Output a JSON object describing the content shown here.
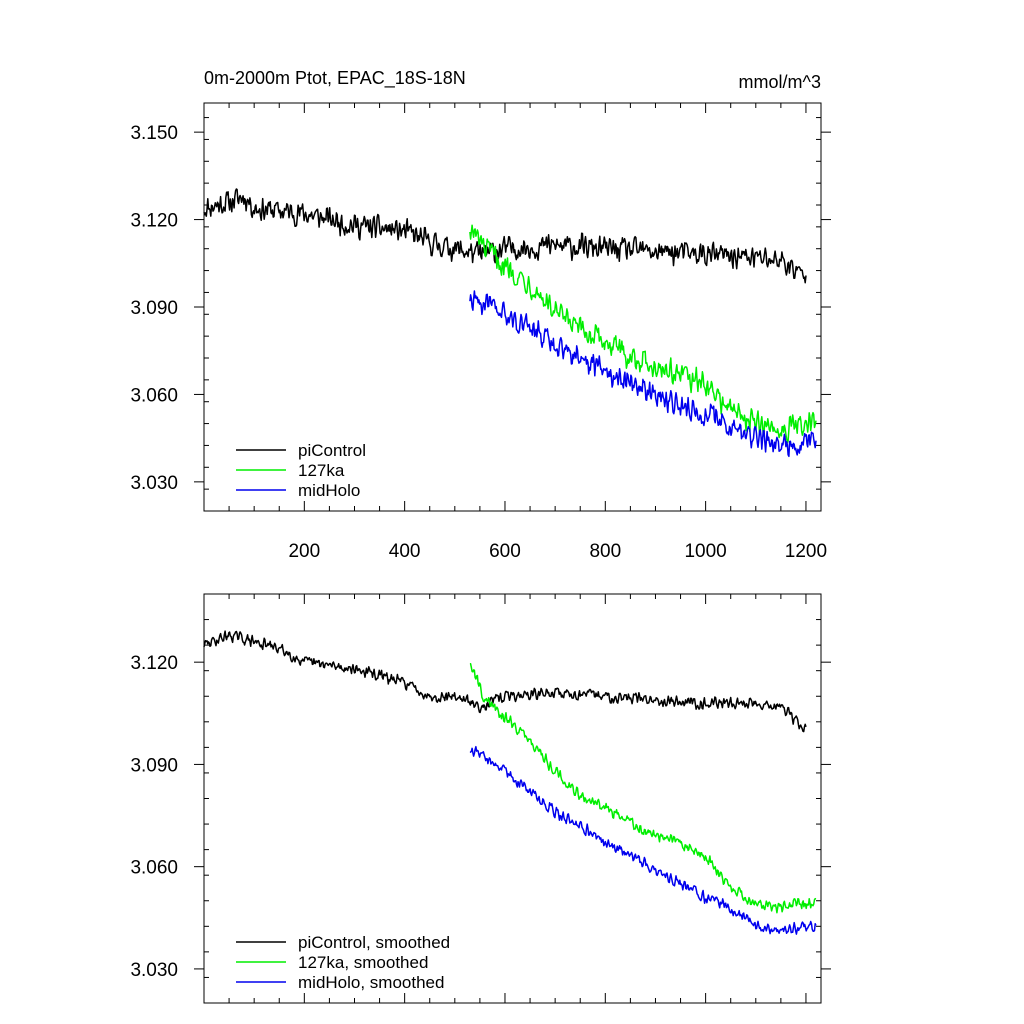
{
  "chart_data": [
    {
      "type": "line",
      "title": "0m-2000m Ptot, EPAC_18S-18N",
      "units": "mmol/m^3",
      "xlim": [
        0,
        1230
      ],
      "ylim": [
        3.02,
        3.16
      ],
      "x_ticks": [
        200,
        400,
        600,
        800,
        1000,
        1200
      ],
      "y_ticks": [
        3.03,
        3.06,
        3.09,
        3.12,
        3.15
      ],
      "y_tick_labels": [
        "3.030",
        "3.060",
        "3.090",
        "3.120",
        "3.150"
      ],
      "legend_position": "bottom-left",
      "series": [
        {
          "name": "piControl",
          "color": "#000000",
          "x": [
            0,
            50,
            80,
            100,
            200,
            300,
            400,
            450,
            500,
            550,
            600,
            700,
            800,
            900,
            1000,
            1100,
            1150,
            1200
          ],
          "y": [
            3.124,
            3.126,
            3.128,
            3.124,
            3.122,
            3.118,
            3.116,
            3.112,
            3.11,
            3.108,
            3.11,
            3.111,
            3.11,
            3.109,
            3.108,
            3.107,
            3.106,
            3.1
          ],
          "noise": 0.005
        },
        {
          "name": "127ka",
          "color": "#00ee00",
          "x": [
            530,
            560,
            600,
            650,
            700,
            750,
            800,
            850,
            900,
            950,
            1000,
            1050,
            1100,
            1150,
            1220
          ],
          "y": [
            3.117,
            3.11,
            3.104,
            3.098,
            3.088,
            3.082,
            3.078,
            3.073,
            3.07,
            3.067,
            3.063,
            3.055,
            3.05,
            3.048,
            3.05
          ],
          "noise": 0.005
        },
        {
          "name": "midHolo",
          "color": "#0000ee",
          "x": [
            530,
            550,
            600,
            650,
            700,
            750,
            800,
            850,
            900,
            950,
            1000,
            1050,
            1100,
            1150,
            1220
          ],
          "y": [
            3.093,
            3.092,
            3.087,
            3.083,
            3.077,
            3.073,
            3.068,
            3.065,
            3.06,
            3.056,
            3.053,
            3.05,
            3.045,
            3.043,
            3.044
          ],
          "noise": 0.005
        }
      ]
    },
    {
      "type": "line",
      "xlim": [
        0,
        1230
      ],
      "ylim": [
        3.02,
        3.14
      ],
      "x_ticks": [
        200,
        400,
        600,
        800,
        1000,
        1200
      ],
      "y_ticks": [
        3.03,
        3.06,
        3.09,
        3.12
      ],
      "y_tick_labels": [
        "3.030",
        "3.060",
        "3.090",
        "3.120"
      ],
      "legend_position": "bottom-left",
      "series": [
        {
          "name": "piControl, smoothed",
          "color": "#000000",
          "x": [
            0,
            50,
            100,
            150,
            200,
            300,
            400,
            450,
            500,
            550,
            600,
            700,
            800,
            900,
            1000,
            1100,
            1150,
            1200
          ],
          "y": [
            3.125,
            3.128,
            3.126,
            3.124,
            3.12,
            3.118,
            3.114,
            3.11,
            3.11,
            3.107,
            3.11,
            3.111,
            3.11,
            3.109,
            3.108,
            3.108,
            3.107,
            3.1
          ],
          "noise": 0.002
        },
        {
          "name": "127ka, smoothed",
          "color": "#00ee00",
          "x": [
            530,
            560,
            600,
            650,
            700,
            750,
            800,
            850,
            900,
            950,
            1000,
            1050,
            1100,
            1150,
            1220
          ],
          "y": [
            3.12,
            3.109,
            3.104,
            3.097,
            3.088,
            3.081,
            3.077,
            3.073,
            3.069,
            3.067,
            3.063,
            3.054,
            3.049,
            3.048,
            3.05
          ],
          "noise": 0.002
        },
        {
          "name": "midHolo, smoothed",
          "color": "#0000ee",
          "x": [
            530,
            550,
            600,
            650,
            700,
            750,
            800,
            850,
            900,
            950,
            1000,
            1050,
            1100,
            1150,
            1220
          ],
          "y": [
            3.094,
            3.093,
            3.088,
            3.082,
            3.076,
            3.072,
            3.067,
            3.064,
            3.059,
            3.055,
            3.051,
            3.048,
            3.043,
            3.041,
            3.043
          ],
          "noise": 0.002
        }
      ]
    }
  ]
}
